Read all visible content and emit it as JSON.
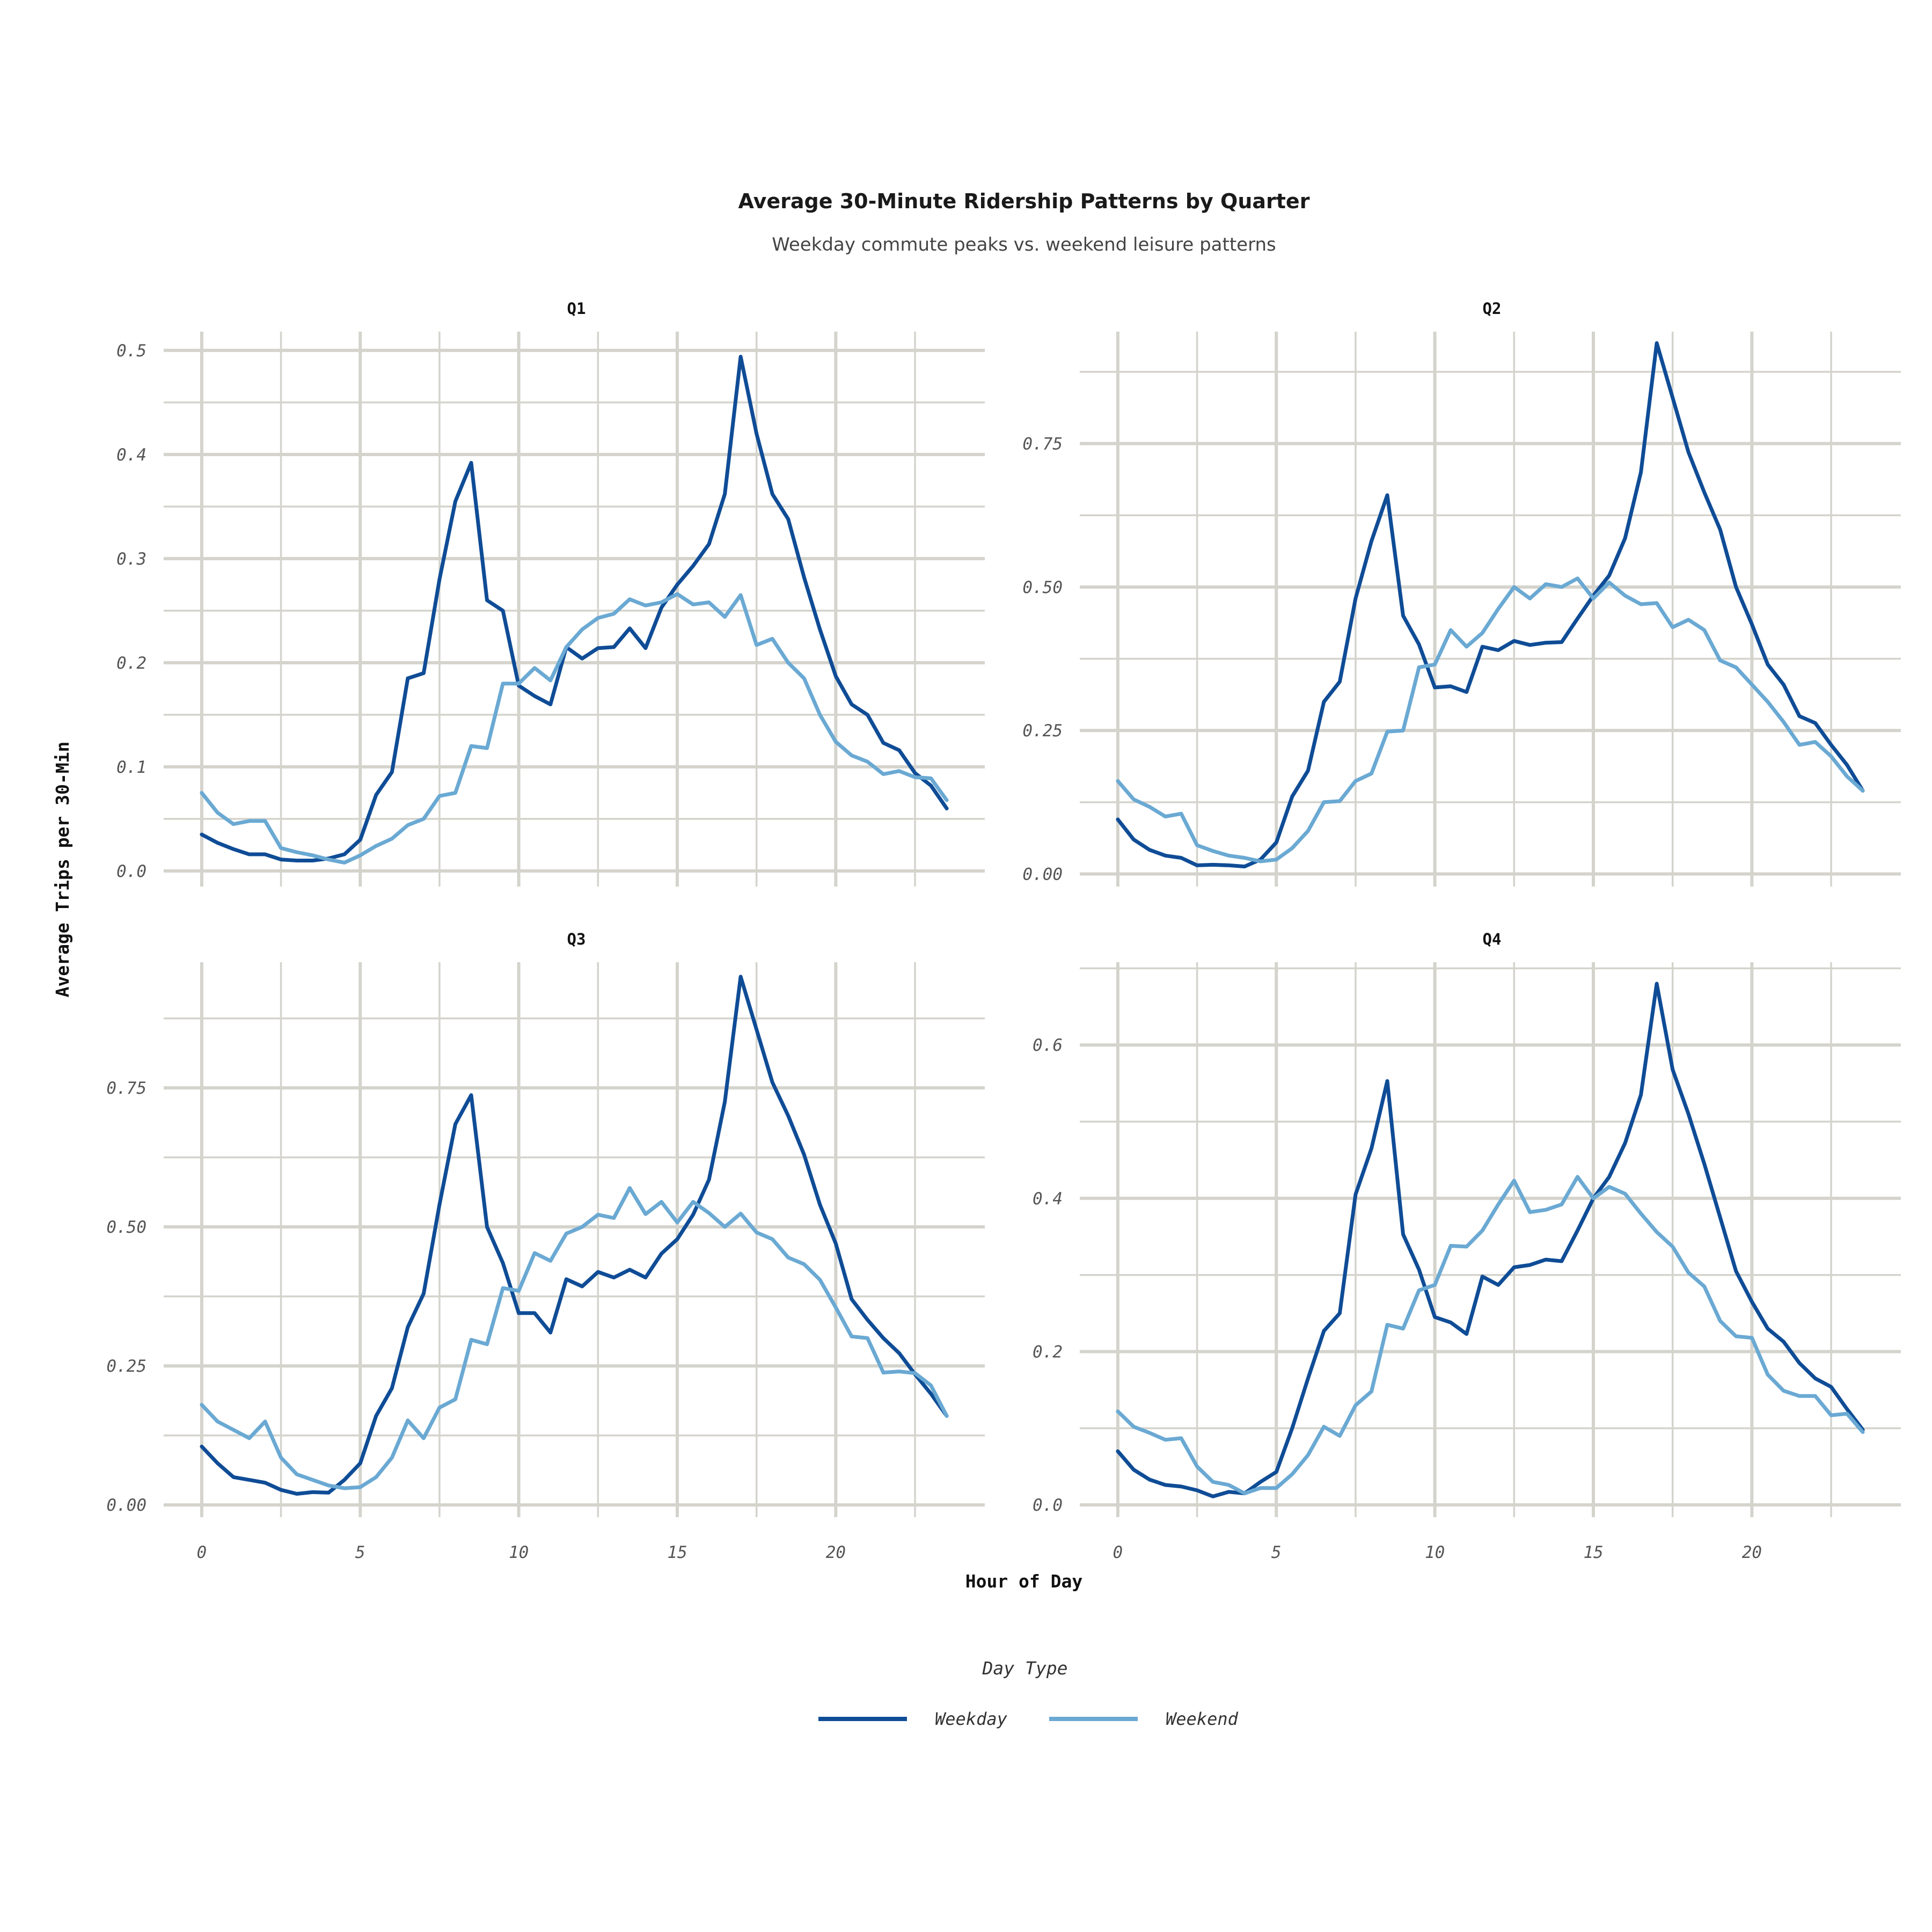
{
  "chart_data": {
    "type": "line",
    "title": "Average 30-Minute Ridership Patterns by Quarter",
    "subtitle": "Weekday commute peaks vs. weekend leisure patterns",
    "xlabel": "Hour of Day",
    "ylabel": "Average Trips per 30-Min",
    "legend": {
      "title": "Day Type",
      "position": "bottom",
      "entries": [
        "Weekday",
        "Weekend"
      ]
    },
    "colors": {
      "Weekday": "#0f4c96",
      "Weekend": "#6aa9d3"
    },
    "grid": true,
    "x": [
      0,
      0.5,
      1,
      1.5,
      2,
      2.5,
      3,
      3.5,
      4,
      4.5,
      5,
      5.5,
      6,
      6.5,
      7,
      7.5,
      8,
      8.5,
      9,
      9.5,
      10,
      10.5,
      11,
      11.5,
      12,
      12.5,
      13,
      13.5,
      14,
      14.5,
      15,
      15.5,
      16,
      16.5,
      17,
      17.5,
      18,
      18.5,
      19,
      19.5,
      20,
      20.5,
      21,
      21.5,
      22,
      22.5,
      23,
      23.5
    ],
    "xlim": [
      -1.2,
      24.7
    ],
    "xticks": [
      0,
      5,
      10,
      15,
      20
    ],
    "panels": [
      {
        "name": "Q1",
        "ylim": [
          -0.015,
          0.518
        ],
        "yticks": [
          0.0,
          0.1,
          0.2,
          0.3,
          0.4,
          0.5
        ],
        "ytick_labels": [
          "0.0",
          "0.1",
          "0.2",
          "0.3",
          "0.4",
          "0.5"
        ],
        "series": [
          {
            "name": "Weekday",
            "values": [
              0.035,
              0.027,
              0.021,
              0.016,
              0.016,
              0.011,
              0.01,
              0.01,
              0.012,
              0.016,
              0.03,
              0.073,
              0.095,
              0.185,
              0.19,
              0.28,
              0.355,
              0.392,
              0.26,
              0.25,
              0.178,
              0.168,
              0.16,
              0.215,
              0.204,
              0.214,
              0.215,
              0.233,
              0.214,
              0.253,
              0.275,
              0.293,
              0.314,
              0.362,
              0.494,
              0.42,
              0.362,
              0.338,
              0.282,
              0.232,
              0.187,
              0.16,
              0.15,
              0.123,
              0.116,
              0.094,
              0.082,
              0.06
            ]
          },
          {
            "name": "Weekend",
            "values": [
              0.075,
              0.056,
              0.045,
              0.048,
              0.048,
              0.022,
              0.018,
              0.015,
              0.011,
              0.008,
              0.015,
              0.024,
              0.031,
              0.044,
              0.05,
              0.072,
              0.075,
              0.12,
              0.118,
              0.18,
              0.18,
              0.195,
              0.183,
              0.215,
              0.232,
              0.243,
              0.247,
              0.261,
              0.255,
              0.258,
              0.266,
              0.256,
              0.258,
              0.244,
              0.265,
              0.217,
              0.223,
              0.2,
              0.185,
              0.15,
              0.124,
              0.111,
              0.105,
              0.093,
              0.096,
              0.09,
              0.089,
              0.068
            ]
          }
        ]
      },
      {
        "name": "Q2",
        "ylim": [
          -0.022,
          0.945
        ],
        "yticks": [
          0.0,
          0.25,
          0.5,
          0.75
        ],
        "ytick_labels": [
          "0.00",
          "0.25",
          "0.50",
          "0.75"
        ],
        "series": [
          {
            "name": "Weekday",
            "values": [
              0.095,
              0.06,
              0.042,
              0.032,
              0.028,
              0.015,
              0.016,
              0.015,
              0.013,
              0.025,
              0.055,
              0.135,
              0.18,
              0.3,
              0.335,
              0.48,
              0.58,
              0.66,
              0.45,
              0.4,
              0.325,
              0.327,
              0.317,
              0.396,
              0.39,
              0.406,
              0.399,
              0.403,
              0.404,
              0.445,
              0.485,
              0.52,
              0.585,
              0.7,
              0.925,
              0.83,
              0.735,
              0.665,
              0.6,
              0.5,
              0.435,
              0.365,
              0.33,
              0.275,
              0.263,
              0.225,
              0.19,
              0.145
            ]
          },
          {
            "name": "Weekend",
            "values": [
              0.162,
              0.13,
              0.117,
              0.1,
              0.105,
              0.05,
              0.04,
              0.032,
              0.028,
              0.022,
              0.025,
              0.045,
              0.075,
              0.125,
              0.127,
              0.162,
              0.175,
              0.248,
              0.25,
              0.36,
              0.365,
              0.425,
              0.396,
              0.42,
              0.462,
              0.5,
              0.48,
              0.505,
              0.5,
              0.515,
              0.48,
              0.508,
              0.485,
              0.47,
              0.472,
              0.43,
              0.443,
              0.425,
              0.372,
              0.36,
              0.33,
              0.3,
              0.265,
              0.225,
              0.23,
              0.205,
              0.17,
              0.145
            ]
          }
        ]
      },
      {
        "name": "Q3",
        "ylim": [
          -0.022,
          0.976
        ],
        "yticks": [
          0.0,
          0.25,
          0.5,
          0.75
        ],
        "ytick_labels": [
          "0.00",
          "0.25",
          "0.50",
          "0.75"
        ],
        "series": [
          {
            "name": "Weekday",
            "values": [
              0.105,
              0.075,
              0.05,
              0.045,
              0.04,
              0.027,
              0.02,
              0.023,
              0.022,
              0.045,
              0.075,
              0.16,
              0.21,
              0.32,
              0.38,
              0.54,
              0.685,
              0.737,
              0.5,
              0.435,
              0.345,
              0.345,
              0.31,
              0.406,
              0.393,
              0.419,
              0.409,
              0.423,
              0.409,
              0.452,
              0.478,
              0.522,
              0.585,
              0.725,
              0.95,
              0.855,
              0.76,
              0.7,
              0.63,
              0.54,
              0.47,
              0.37,
              0.333,
              0.3,
              0.273,
              0.235,
              0.2,
              0.16
            ]
          },
          {
            "name": "Weekend",
            "values": [
              0.18,
              0.15,
              0.135,
              0.12,
              0.15,
              0.085,
              0.055,
              0.045,
              0.035,
              0.03,
              0.032,
              0.05,
              0.085,
              0.152,
              0.12,
              0.175,
              0.19,
              0.297,
              0.289,
              0.39,
              0.385,
              0.453,
              0.439,
              0.488,
              0.5,
              0.522,
              0.516,
              0.57,
              0.523,
              0.545,
              0.508,
              0.545,
              0.525,
              0.5,
              0.524,
              0.49,
              0.478,
              0.445,
              0.433,
              0.405,
              0.355,
              0.303,
              0.3,
              0.238,
              0.24,
              0.237,
              0.215,
              0.16
            ]
          }
        ]
      },
      {
        "name": "Q4",
        "ylim": [
          -0.016,
          0.708
        ],
        "yticks": [
          0.0,
          0.2,
          0.4,
          0.6
        ],
        "ytick_labels": [
          "0.0",
          "0.2",
          "0.4",
          "0.6"
        ],
        "series": [
          {
            "name": "Weekday",
            "values": [
              0.07,
              0.046,
              0.033,
              0.026,
              0.024,
              0.019,
              0.011,
              0.017,
              0.015,
              0.03,
              0.043,
              0.1,
              0.165,
              0.227,
              0.25,
              0.405,
              0.465,
              0.553,
              0.353,
              0.307,
              0.245,
              0.238,
              0.223,
              0.298,
              0.287,
              0.31,
              0.313,
              0.32,
              0.318,
              0.358,
              0.4,
              0.428,
              0.472,
              0.535,
              0.68,
              0.568,
              0.51,
              0.445,
              0.375,
              0.305,
              0.265,
              0.23,
              0.213,
              0.185,
              0.165,
              0.154,
              0.125,
              0.098
            ]
          },
          {
            "name": "Weekend",
            "values": [
              0.122,
              0.102,
              0.094,
              0.085,
              0.087,
              0.05,
              0.03,
              0.026,
              0.015,
              0.022,
              0.022,
              0.04,
              0.065,
              0.102,
              0.09,
              0.13,
              0.148,
              0.235,
              0.23,
              0.28,
              0.287,
              0.338,
              0.337,
              0.358,
              0.392,
              0.423,
              0.382,
              0.385,
              0.392,
              0.428,
              0.4,
              0.415,
              0.406,
              0.38,
              0.356,
              0.337,
              0.303,
              0.285,
              0.24,
              0.22,
              0.218,
              0.17,
              0.149,
              0.142,
              0.142,
              0.117,
              0.119,
              0.095
            ]
          }
        ]
      }
    ]
  }
}
